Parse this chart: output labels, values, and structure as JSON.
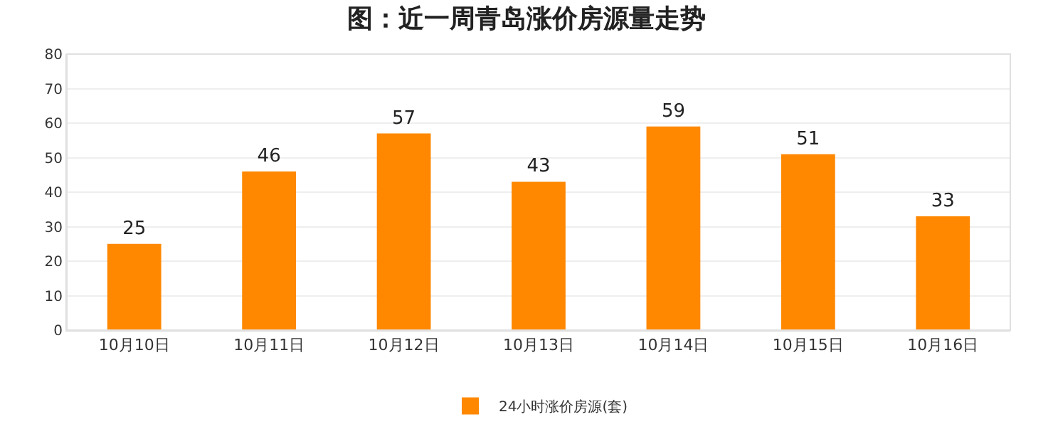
{
  "chart_data": {
    "type": "bar",
    "title": "图：近一周青岛涨价房源量走势",
    "categories": [
      "10月10日",
      "10月11日",
      "10月12日",
      "10月13日",
      "10月14日",
      "10月15日",
      "10月16日"
    ],
    "series": [
      {
        "name": "24小时涨价房源(套)",
        "color": "#ff8800",
        "values": [
          25,
          46,
          57,
          43,
          59,
          51,
          33
        ]
      }
    ],
    "ylim": [
      0,
      80
    ],
    "yticks": [
      0,
      10,
      20,
      30,
      40,
      50,
      60,
      70,
      80
    ],
    "grid": "y",
    "legend": "bottom",
    "data_labels": true
  }
}
